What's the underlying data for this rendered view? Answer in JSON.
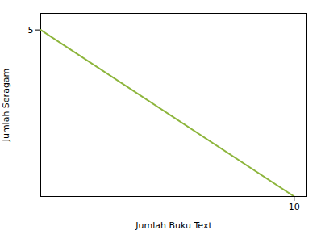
{
  "chart_data": {
    "type": "line",
    "xlabel": "Jumlah Buku Text",
    "ylabel": "Jumlah Seragam",
    "x": [
      0,
      10
    ],
    "values": [
      5,
      0
    ],
    "color": "#8db53c",
    "xlim": [
      0,
      10.5
    ],
    "ylim": [
      0,
      5.5
    ],
    "xticks": [
      10
    ],
    "yticks": [
      5
    ],
    "grid": false
  }
}
